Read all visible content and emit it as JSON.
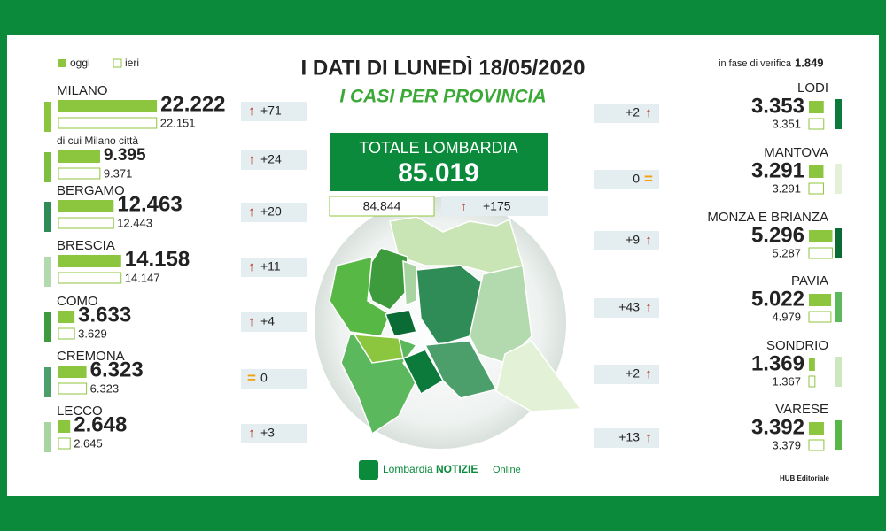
{
  "header": {
    "title": "I DATI DI LUNEDÌ 18/05/2020",
    "subtitle": "I CASI PER PROVINCIA",
    "legend": [
      "oggi",
      "ieri"
    ],
    "verifica_label": "in fase di verifica",
    "verifica_value": "1.849"
  },
  "total": {
    "label": "TOTALE LOMBARDIA",
    "today": "85.019",
    "yesterday": "84.844",
    "change": "+175"
  },
  "left": [
    {
      "name": "MILANO",
      "today": {
        "value": 22222,
        "label": "22.222"
      },
      "yesterday": {
        "value": 22151,
        "label": "22.151"
      },
      "color": "#8cc63e",
      "change": "+71",
      "trend": "up"
    },
    {
      "name": "di cui Milano città",
      "today": {
        "value": 9395,
        "label": "9.395"
      },
      "yesterday": {
        "value": 9371,
        "label": "9.371"
      },
      "color": "#7dbf3f",
      "change": "+24",
      "trend": "up"
    },
    {
      "name": "BERGAMO",
      "today": {
        "value": 12463,
        "label": "12.463"
      },
      "yesterday": {
        "value": 12443,
        "label": "12.443"
      },
      "color": "#2f8c57",
      "change": "+20",
      "trend": "up"
    },
    {
      "name": "BRESCIA",
      "today": {
        "value": 14158,
        "label": "14.158"
      },
      "yesterday": {
        "value": 14147,
        "label": "14.147"
      },
      "color": "#b3d9ae",
      "change": "+11",
      "trend": "up"
    },
    {
      "name": "COMO",
      "today": {
        "value": 3633,
        "label": "3.633"
      },
      "yesterday": {
        "value": 3629,
        "label": "3.629"
      },
      "color": "#3d9b3d",
      "change": "+4",
      "trend": "up"
    },
    {
      "name": "CREMONA",
      "today": {
        "value": 6323,
        "label": "6.323"
      },
      "yesterday": {
        "value": 6323,
        "label": "6.323"
      },
      "color": "#4c9f6b",
      "change": "0",
      "trend": "equal"
    },
    {
      "name": "LECCO",
      "today": {
        "value": 2648,
        "label": "2.648"
      },
      "yesterday": {
        "value": 2645,
        "label": "2.645"
      },
      "color": "#a7d4a0",
      "change": "+3",
      "trend": "up"
    }
  ],
  "right": [
    {
      "name": "LODI",
      "today": {
        "value": 3353,
        "label": "3.353"
      },
      "yesterday": {
        "value": 3351,
        "label": "3.351"
      },
      "color": "#0b7a3b",
      "change": "+2",
      "trend": "up"
    },
    {
      "name": "MANTOVA",
      "today": {
        "value": 3291,
        "label": "3.291"
      },
      "yesterday": {
        "value": 3291,
        "label": "3.291"
      },
      "color": "#e3f1d7",
      "change": "0",
      "trend": "equal"
    },
    {
      "name": "MONZA E BRIANZA",
      "today": {
        "value": 5296,
        "label": "5.296"
      },
      "yesterday": {
        "value": 5287,
        "label": "5.287"
      },
      "color": "#0b6b35",
      "change": "+9",
      "trend": "up"
    },
    {
      "name": "PAVIA",
      "today": {
        "value": 5022,
        "label": "5.022"
      },
      "yesterday": {
        "value": 4979,
        "label": "4.979"
      },
      "color": "#5cb85c",
      "change": "+43",
      "trend": "up"
    },
    {
      "name": "SONDRIO",
      "today": {
        "value": 1369,
        "label": "1.369"
      },
      "yesterday": {
        "value": 1367,
        "label": "1.367"
      },
      "color": "#cde7bf",
      "change": "+2",
      "trend": "up"
    },
    {
      "name": "VARESE",
      "today": {
        "value": 3392,
        "label": "3.392"
      },
      "yesterday": {
        "value": 3379,
        "label": "3.379"
      },
      "color": "#58b846",
      "change": "+13",
      "trend": "up"
    }
  ],
  "footer": {
    "logo": [
      "Lombardia",
      "NOTIZIE",
      "Online"
    ],
    "credit": "HUB Editoriale"
  }
}
